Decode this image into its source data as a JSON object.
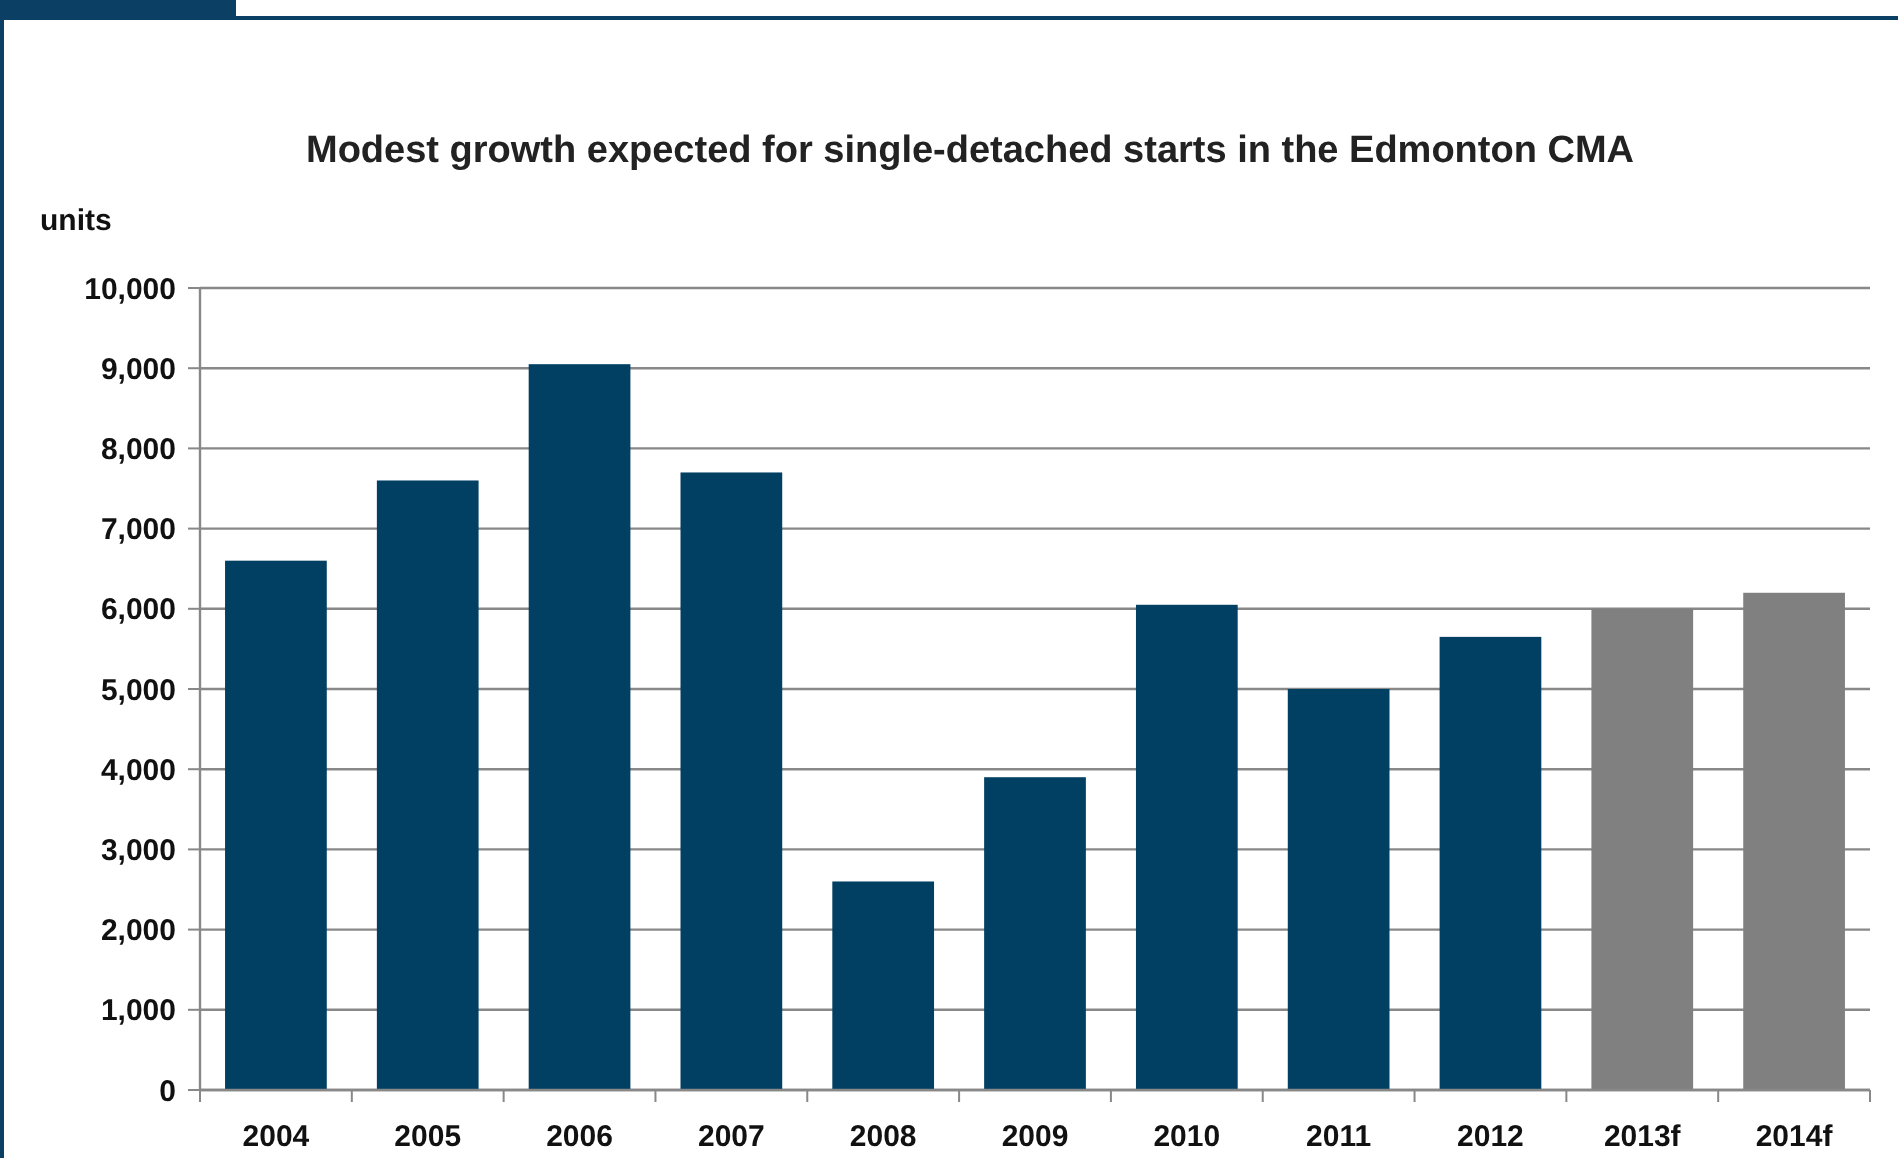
{
  "chart_data": {
    "type": "bar",
    "title": "Modest growth expected for single-detached starts in the Edmonton CMA",
    "ylabel": "units",
    "categories": [
      "2004",
      "2005",
      "2006",
      "2007",
      "2008",
      "2009",
      "2010",
      "2011",
      "2012",
      "2013f",
      "2014f"
    ],
    "values": [
      6600,
      7600,
      9050,
      7700,
      2600,
      3900,
      6050,
      5000,
      5650,
      6000,
      6200
    ],
    "colors": [
      "#013f63",
      "#013f63",
      "#013f63",
      "#013f63",
      "#013f63",
      "#013f63",
      "#013f63",
      "#013f63",
      "#013f63",
      "#808080",
      "#808080"
    ],
    "ylim": [
      0,
      10000
    ],
    "yticks": [
      {
        "value": 0,
        "label": "0"
      },
      {
        "value": 1000,
        "label": "1,000"
      },
      {
        "value": 2000,
        "label": "2,000"
      },
      {
        "value": 3000,
        "label": "3,000"
      },
      {
        "value": 4000,
        "label": "4,000"
      },
      {
        "value": 5000,
        "label": "5,000"
      },
      {
        "value": 6000,
        "label": "6,000"
      },
      {
        "value": 7000,
        "label": "7,000"
      },
      {
        "value": 8000,
        "label": "8,000"
      },
      {
        "value": 9000,
        "label": "9,000"
      },
      {
        "value": 10000,
        "label": "10,000"
      }
    ],
    "grid": "y"
  }
}
